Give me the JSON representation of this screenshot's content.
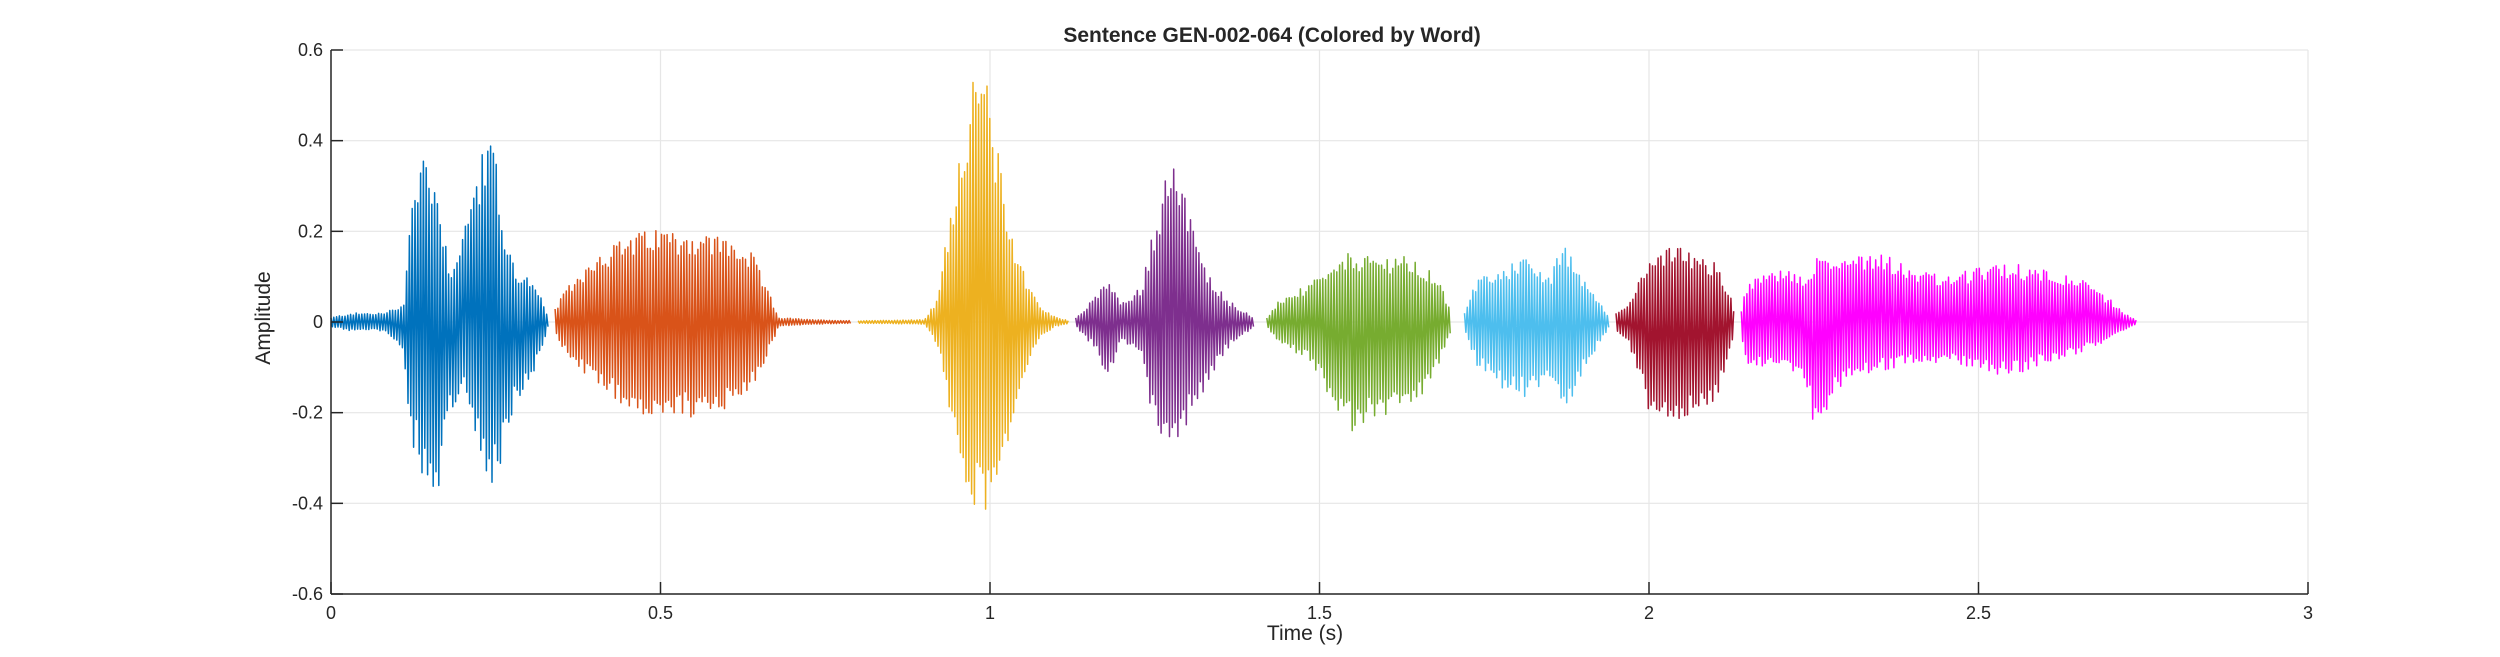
{
  "chart_data": {
    "type": "line",
    "title": "Sentence GEN-002-064 (Colored by Word)",
    "xlabel": "Time (s)",
    "ylabel": "Amplitude",
    "xlim": [
      0,
      3
    ],
    "ylim": [
      -0.6,
      0.6
    ],
    "xticks": [
      0,
      0.5,
      1,
      1.5,
      2,
      2.5,
      3
    ],
    "xtick_labels": [
      "0",
      "0.5",
      "1",
      "1.5",
      "2",
      "2.5",
      "3"
    ],
    "yticks": [
      0.6,
      0.4,
      0.2,
      0,
      -0.2,
      -0.4,
      -0.6
    ],
    "ytick_labels": [
      "0.6",
      "0.4",
      "0.2",
      "0",
      "-0.2",
      "-0.4",
      "-0.6"
    ],
    "grid": true,
    "series": [
      {
        "color": "#0072BD",
        "start": 0.0,
        "end": 0.33,
        "envelope": [
          [
            0.0,
            0.01,
            -0.01
          ],
          [
            0.03,
            0.02,
            -0.02
          ],
          [
            0.08,
            0.02,
            -0.02
          ],
          [
            0.11,
            0.04,
            -0.06
          ],
          [
            0.12,
            0.25,
            -0.25
          ],
          [
            0.14,
            0.39,
            -0.35
          ],
          [
            0.16,
            0.32,
            -0.41
          ],
          [
            0.18,
            0.12,
            -0.2
          ],
          [
            0.2,
            0.2,
            -0.15
          ],
          [
            0.22,
            0.33,
            -0.25
          ],
          [
            0.245,
            0.44,
            -0.38
          ],
          [
            0.26,
            0.22,
            -0.3
          ],
          [
            0.28,
            0.12,
            -0.18
          ],
          [
            0.3,
            0.1,
            -0.14
          ],
          [
            0.32,
            0.05,
            -0.06
          ],
          [
            0.33,
            0.01,
            -0.01
          ]
        ]
      },
      {
        "color": "#D95319",
        "start": 0.34,
        "end": 0.79,
        "envelope": [
          [
            0.34,
            0.03,
            -0.03
          ],
          [
            0.36,
            0.08,
            -0.08
          ],
          [
            0.4,
            0.15,
            -0.14
          ],
          [
            0.45,
            0.19,
            -0.19
          ],
          [
            0.5,
            0.21,
            -0.22
          ],
          [
            0.55,
            0.2,
            -0.21
          ],
          [
            0.6,
            0.19,
            -0.19
          ],
          [
            0.64,
            0.15,
            -0.15
          ],
          [
            0.66,
            0.08,
            -0.08
          ],
          [
            0.68,
            0.01,
            -0.01
          ],
          [
            0.73,
            0.005,
            -0.005
          ],
          [
            0.79,
            0.003,
            -0.003
          ]
        ]
      },
      {
        "color": "#EDB120",
        "start": 0.8,
        "end": 1.12,
        "envelope": [
          [
            0.8,
            0.003,
            -0.003
          ],
          [
            0.9,
            0.005,
            -0.005
          ],
          [
            0.92,
            0.05,
            -0.05
          ],
          [
            0.95,
            0.35,
            -0.3
          ],
          [
            0.97,
            0.52,
            -0.4
          ],
          [
            0.99,
            0.58,
            -0.44
          ],
          [
            1.0,
            0.5,
            -0.38
          ],
          [
            1.02,
            0.3,
            -0.3
          ],
          [
            1.04,
            0.16,
            -0.2
          ],
          [
            1.06,
            0.08,
            -0.08
          ],
          [
            1.08,
            0.03,
            -0.03
          ],
          [
            1.1,
            0.01,
            -0.01
          ],
          [
            1.12,
            0.003,
            -0.003
          ]
        ]
      },
      {
        "color": "#7E2F8E",
        "start": 1.13,
        "end": 1.4,
        "envelope": [
          [
            1.13,
            0.01,
            -0.01
          ],
          [
            1.16,
            0.06,
            -0.06
          ],
          [
            1.18,
            0.09,
            -0.13
          ],
          [
            1.2,
            0.04,
            -0.04
          ],
          [
            1.23,
            0.08,
            -0.08
          ],
          [
            1.25,
            0.22,
            -0.24
          ],
          [
            1.28,
            0.4,
            -0.3
          ],
          [
            1.3,
            0.25,
            -0.22
          ],
          [
            1.33,
            0.11,
            -0.14
          ],
          [
            1.36,
            0.05,
            -0.06
          ],
          [
            1.4,
            0.01,
            -0.01
          ]
        ]
      },
      {
        "color": "#77AC30",
        "start": 1.42,
        "end": 1.7,
        "envelope": [
          [
            1.42,
            0.01,
            -0.01
          ],
          [
            1.44,
            0.05,
            -0.05
          ],
          [
            1.48,
            0.08,
            -0.08
          ],
          [
            1.52,
            0.12,
            -0.18
          ],
          [
            1.55,
            0.16,
            -0.25
          ],
          [
            1.58,
            0.14,
            -0.22
          ],
          [
            1.62,
            0.15,
            -0.2
          ],
          [
            1.65,
            0.13,
            -0.18
          ],
          [
            1.68,
            0.1,
            -0.1
          ],
          [
            1.7,
            0.02,
            -0.02
          ]
        ]
      },
      {
        "color": "#4DBEEE",
        "start": 1.72,
        "end": 1.94,
        "envelope": [
          [
            1.72,
            0.02,
            -0.02
          ],
          [
            1.74,
            0.1,
            -0.1
          ],
          [
            1.78,
            0.12,
            -0.15
          ],
          [
            1.82,
            0.15,
            -0.17
          ],
          [
            1.85,
            0.1,
            -0.12
          ],
          [
            1.87,
            0.18,
            -0.22
          ],
          [
            1.89,
            0.12,
            -0.14
          ],
          [
            1.92,
            0.06,
            -0.06
          ],
          [
            1.94,
            0.01,
            -0.01
          ]
        ]
      },
      {
        "color": "#A2142F",
        "start": 1.95,
        "end": 2.13,
        "envelope": [
          [
            1.95,
            0.02,
            -0.02
          ],
          [
            1.97,
            0.05,
            -0.05
          ],
          [
            2.0,
            0.13,
            -0.2
          ],
          [
            2.03,
            0.17,
            -0.22
          ],
          [
            2.07,
            0.16,
            -0.22
          ],
          [
            2.1,
            0.13,
            -0.18
          ],
          [
            2.12,
            0.08,
            -0.08
          ],
          [
            2.13,
            0.02,
            -0.02
          ]
        ]
      },
      {
        "color": "#FF00FF",
        "start": 2.14,
        "end": 2.74,
        "envelope": [
          [
            2.14,
            0.03,
            -0.03
          ],
          [
            2.15,
            0.09,
            -0.1
          ],
          [
            2.2,
            0.12,
            -0.1
          ],
          [
            2.24,
            0.1,
            -0.15
          ],
          [
            2.25,
            0.14,
            -0.24
          ],
          [
            2.3,
            0.15,
            -0.12
          ],
          [
            2.35,
            0.16,
            -0.11
          ],
          [
            2.4,
            0.12,
            -0.09
          ],
          [
            2.45,
            0.1,
            -0.09
          ],
          [
            2.5,
            0.12,
            -0.11
          ],
          [
            2.55,
            0.13,
            -0.12
          ],
          [
            2.6,
            0.12,
            -0.09
          ],
          [
            2.65,
            0.1,
            -0.07
          ],
          [
            2.7,
            0.05,
            -0.04
          ],
          [
            2.72,
            0.02,
            -0.02
          ],
          [
            2.74,
            0.005,
            -0.005
          ]
        ]
      }
    ]
  }
}
